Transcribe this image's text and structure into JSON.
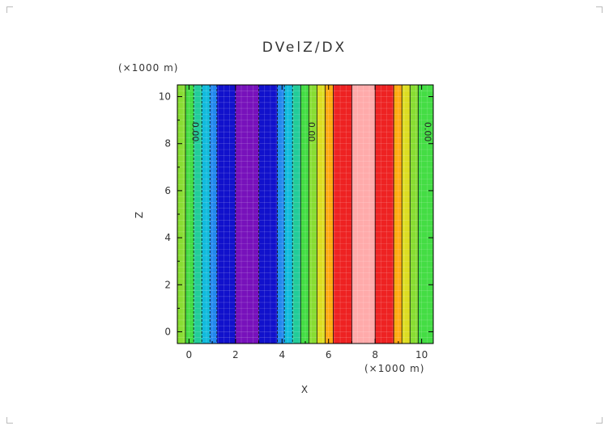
{
  "chart_data": {
    "type": "heatmap",
    "title": "DVelZ/DX",
    "xlabel": "X",
    "ylabel": "Z",
    "x_unit": "(×1000 m)",
    "y_unit": "(×1000 m)",
    "xlim": [
      -0.5,
      10.5
    ],
    "ylim": [
      -0.5,
      10.5
    ],
    "x_ticks": [
      "0",
      "2",
      "4",
      "6",
      "8",
      "10"
    ],
    "y_ticks": [
      "0",
      "2",
      "4",
      "6",
      "8",
      "10"
    ],
    "x_tick_values": [
      0,
      2,
      4,
      6,
      8,
      10
    ],
    "y_tick_values": [
      0,
      2,
      4,
      6,
      8,
      10
    ],
    "field_varies_along": "x",
    "bands": [
      {
        "x0": -0.5,
        "x1": -0.15,
        "color": "#88dd33"
      },
      {
        "x0": -0.15,
        "x1": 0.2,
        "color": "#44dd44"
      },
      {
        "x0": 0.2,
        "x1": 0.55,
        "color": "#22cc99"
      },
      {
        "x0": 0.55,
        "x1": 0.9,
        "color": "#11bbdd"
      },
      {
        "x0": 0.9,
        "x1": 1.2,
        "color": "#2288ee"
      },
      {
        "x0": 1.2,
        "x1": 2.0,
        "color": "#1111cc"
      },
      {
        "x0": 2.0,
        "x1": 3.0,
        "color": "#7711bb"
      },
      {
        "x0": 3.0,
        "x1": 3.8,
        "color": "#1111cc"
      },
      {
        "x0": 3.8,
        "x1": 4.1,
        "color": "#2288ee"
      },
      {
        "x0": 4.1,
        "x1": 4.45,
        "color": "#11bbdd"
      },
      {
        "x0": 4.45,
        "x1": 4.8,
        "color": "#22cc99"
      },
      {
        "x0": 4.8,
        "x1": 5.15,
        "color": "#44dd44"
      },
      {
        "x0": 5.15,
        "x1": 5.5,
        "color": "#88dd33"
      },
      {
        "x0": 5.5,
        "x1": 5.85,
        "color": "#dddd22"
      },
      {
        "x0": 5.85,
        "x1": 6.2,
        "color": "#ffaa11"
      },
      {
        "x0": 6.2,
        "x1": 7.0,
        "color": "#ee2222"
      },
      {
        "x0": 7.0,
        "x1": 8.0,
        "color": "#ffaaaa"
      },
      {
        "x0": 8.0,
        "x1": 8.8,
        "color": "#ee2222"
      },
      {
        "x0": 8.8,
        "x1": 9.15,
        "color": "#ffaa11"
      },
      {
        "x0": 9.15,
        "x1": 9.5,
        "color": "#dddd22"
      },
      {
        "x0": 9.5,
        "x1": 9.85,
        "color": "#88dd33"
      },
      {
        "x0": 9.85,
        "x1": 10.5,
        "color": "#44dd44"
      }
    ],
    "contour_lines_x": [
      -0.15,
      0.2,
      0.55,
      0.9,
      1.2,
      2.0,
      3.0,
      3.8,
      4.1,
      4.45,
      4.8,
      5.15,
      5.5,
      5.85,
      6.2,
      7.0,
      8.0,
      8.8,
      9.15,
      9.5,
      9.85
    ],
    "dashed_contour_lines_x": [
      0.2,
      0.55,
      0.9,
      1.2,
      2.0,
      3.0,
      3.8,
      4.1,
      4.45
    ],
    "contour_labels": [
      {
        "text": "0.00",
        "x": 0.0,
        "y": 8.5
      },
      {
        "text": "0.00",
        "x": 5.0,
        "y": 8.5
      },
      {
        "text": "0.00",
        "x": 10.0,
        "y": 8.5
      }
    ],
    "grid": false
  }
}
